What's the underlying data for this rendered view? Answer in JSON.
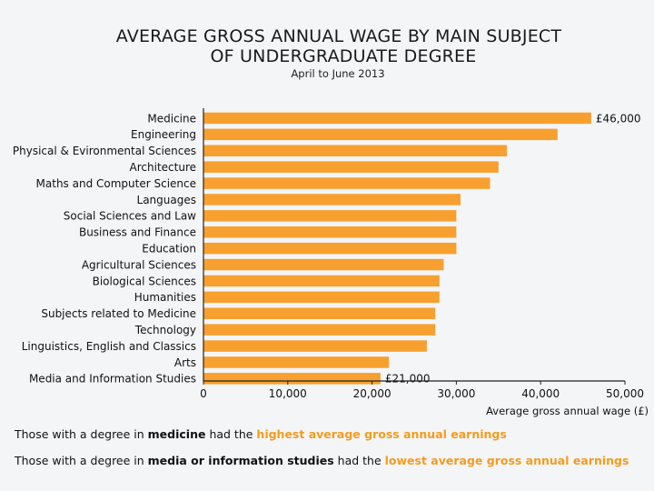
{
  "chart_data": {
    "type": "bar",
    "orientation": "horizontal",
    "title_lines": [
      "AVERAGE GROSS ANNUAL WAGE BY MAIN SUBJECT",
      "OF UNDERGRADUATE DEGREE"
    ],
    "subtitle": "April to June 2013",
    "categories": [
      "Medicine",
      "Engineering",
      "Physical & Evironmental Sciences",
      "Architecture",
      "Maths and Computer Science",
      "Languages",
      "Social Sciences and Law",
      "Business and Finance",
      "Education",
      "Agricultural Sciences",
      "Biological Sciences",
      "Humanities",
      "Subjects related to Medicine",
      "Technology",
      "Linguistics, English and Classics",
      "Arts",
      "Media and Information Studies"
    ],
    "values": [
      46000,
      42000,
      36000,
      35000,
      34000,
      30500,
      30000,
      30000,
      30000,
      28500,
      28000,
      28000,
      27500,
      27500,
      26500,
      22000,
      21000
    ],
    "data_labels": [
      {
        "category": "Medicine",
        "text": "£46,000"
      },
      {
        "category": "Media and Information Studies",
        "text": "£21,000"
      }
    ],
    "xlim": [
      0,
      50000
    ],
    "xticks": [
      0,
      10000,
      20000,
      30000,
      40000,
      50000
    ],
    "xtick_labels": [
      "0",
      "10,000",
      "20,000",
      "30,000",
      "40,000",
      "50,000"
    ],
    "xlabel": "Average gross annual wage (£)",
    "ylabel": "",
    "colors": {
      "bar": "#f7a030",
      "axis": "#222222"
    }
  },
  "notes": [
    {
      "pre": "Those with a degree in ",
      "bold": "medicine",
      "mid": " had the ",
      "highlight": "highest average gross annual earnings"
    },
    {
      "pre": "Those with a degree in ",
      "bold": "media or information studies",
      "mid": " had the ",
      "highlight": "lowest average gross annual earnings"
    }
  ]
}
